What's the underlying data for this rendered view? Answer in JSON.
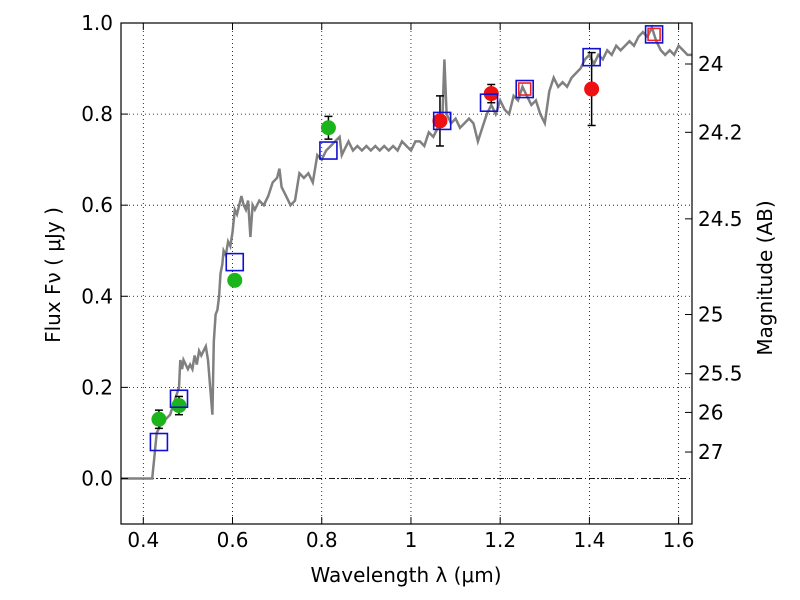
{
  "chart_data": {
    "type": "scatter",
    "xlabel": "Wavelength  λ (μm)",
    "ylabel": "Flux  Fν  ( μJy )",
    "y2label": "Magnitude (AB)",
    "xlim": [
      0.35,
      1.63
    ],
    "ylim": [
      -0.1,
      1.0
    ],
    "grid": true,
    "xticks": [
      0.4,
      0.6,
      0.8,
      1.0,
      1.2,
      1.4,
      1.6
    ],
    "xtick_labels": [
      "0.4",
      "0.6",
      "0.8",
      "1",
      "1.2",
      "1.4",
      "1.6"
    ],
    "yticks": [
      0.0,
      0.2,
      0.4,
      0.6,
      0.8,
      1.0
    ],
    "ytick_labels": [
      "0.0",
      "0.2",
      "0.4",
      "0.6",
      "0.8",
      "1.0"
    ],
    "y2ticks": [
      {
        "label": "24",
        "flux": 0.91
      },
      {
        "label": "24.2",
        "flux": 0.76
      },
      {
        "label": "24.5",
        "flux": 0.57
      },
      {
        "label": "25",
        "flux": 0.36
      },
      {
        "label": "25.5",
        "flux": 0.23
      },
      {
        "label": "26",
        "flux": 0.145
      },
      {
        "label": "27",
        "flux": 0.058
      }
    ],
    "colors": {
      "model": "#808080",
      "green": "#1bb41b",
      "red": "#ee1111",
      "box": "#1010d0",
      "red_box": "#ee2222"
    },
    "series": [
      {
        "style": "model-line",
        "points": [
          [
            0.35,
            0.0
          ],
          [
            0.42,
            0.0
          ],
          [
            0.425,
            0.05
          ],
          [
            0.43,
            0.1
          ],
          [
            0.44,
            0.12
          ],
          [
            0.45,
            0.13
          ],
          [
            0.46,
            0.14
          ],
          [
            0.47,
            0.17
          ],
          [
            0.48,
            0.2
          ],
          [
            0.483,
            0.26
          ],
          [
            0.487,
            0.24
          ],
          [
            0.49,
            0.26
          ],
          [
            0.495,
            0.25
          ],
          [
            0.5,
            0.24
          ],
          [
            0.505,
            0.25
          ],
          [
            0.51,
            0.24
          ],
          [
            0.515,
            0.27
          ],
          [
            0.52,
            0.25
          ],
          [
            0.525,
            0.28
          ],
          [
            0.53,
            0.27
          ],
          [
            0.535,
            0.28
          ],
          [
            0.54,
            0.29
          ],
          [
            0.545,
            0.26
          ],
          [
            0.55,
            0.2
          ],
          [
            0.555,
            0.14
          ],
          [
            0.558,
            0.3
          ],
          [
            0.562,
            0.36
          ],
          [
            0.566,
            0.37
          ],
          [
            0.57,
            0.4
          ],
          [
            0.573,
            0.45
          ],
          [
            0.577,
            0.47
          ],
          [
            0.58,
            0.5
          ],
          [
            0.585,
            0.49
          ],
          [
            0.59,
            0.52
          ],
          [
            0.595,
            0.51
          ],
          [
            0.6,
            0.54
          ],
          [
            0.605,
            0.59
          ],
          [
            0.61,
            0.58
          ],
          [
            0.615,
            0.6
          ],
          [
            0.62,
            0.62
          ],
          [
            0.625,
            0.6
          ],
          [
            0.63,
            0.59
          ],
          [
            0.635,
            0.61
          ],
          [
            0.64,
            0.53
          ],
          [
            0.645,
            0.6
          ],
          [
            0.65,
            0.59
          ],
          [
            0.66,
            0.61
          ],
          [
            0.67,
            0.6
          ],
          [
            0.68,
            0.62
          ],
          [
            0.69,
            0.65
          ],
          [
            0.7,
            0.66
          ],
          [
            0.705,
            0.68
          ],
          [
            0.71,
            0.64
          ],
          [
            0.72,
            0.62
          ],
          [
            0.73,
            0.6
          ],
          [
            0.74,
            0.61
          ],
          [
            0.75,
            0.67
          ],
          [
            0.76,
            0.66
          ],
          [
            0.77,
            0.67
          ],
          [
            0.78,
            0.65
          ],
          [
            0.79,
            0.71
          ],
          [
            0.8,
            0.7
          ],
          [
            0.81,
            0.72
          ],
          [
            0.82,
            0.73
          ],
          [
            0.83,
            0.74
          ],
          [
            0.84,
            0.75
          ],
          [
            0.845,
            0.71
          ],
          [
            0.85,
            0.72
          ],
          [
            0.86,
            0.74
          ],
          [
            0.87,
            0.72
          ],
          [
            0.88,
            0.73
          ],
          [
            0.89,
            0.72
          ],
          [
            0.9,
            0.73
          ],
          [
            0.91,
            0.72
          ],
          [
            0.92,
            0.73
          ],
          [
            0.93,
            0.72
          ],
          [
            0.94,
            0.73
          ],
          [
            0.95,
            0.72
          ],
          [
            0.96,
            0.73
          ],
          [
            0.97,
            0.72
          ],
          [
            0.98,
            0.74
          ],
          [
            0.99,
            0.73
          ],
          [
            1.0,
            0.72
          ],
          [
            1.01,
            0.74
          ],
          [
            1.02,
            0.74
          ],
          [
            1.03,
            0.73
          ],
          [
            1.04,
            0.76
          ],
          [
            1.05,
            0.75
          ],
          [
            1.06,
            0.77
          ],
          [
            1.07,
            0.78
          ],
          [
            1.075,
            0.92
          ],
          [
            1.08,
            0.8
          ],
          [
            1.09,
            0.78
          ],
          [
            1.1,
            0.79
          ],
          [
            1.11,
            0.77
          ],
          [
            1.12,
            0.78
          ],
          [
            1.13,
            0.79
          ],
          [
            1.14,
            0.78
          ],
          [
            1.15,
            0.74
          ],
          [
            1.16,
            0.77
          ],
          [
            1.17,
            0.8
          ],
          [
            1.18,
            0.82
          ],
          [
            1.19,
            0.8
          ],
          [
            1.2,
            0.83
          ],
          [
            1.21,
            0.81
          ],
          [
            1.22,
            0.8
          ],
          [
            1.23,
            0.84
          ],
          [
            1.24,
            0.83
          ],
          [
            1.25,
            0.86
          ],
          [
            1.26,
            0.84
          ],
          [
            1.27,
            0.82
          ],
          [
            1.28,
            0.83
          ],
          [
            1.29,
            0.8
          ],
          [
            1.3,
            0.78
          ],
          [
            1.31,
            0.85
          ],
          [
            1.32,
            0.88
          ],
          [
            1.33,
            0.86
          ],
          [
            1.34,
            0.87
          ],
          [
            1.35,
            0.86
          ],
          [
            1.36,
            0.88
          ],
          [
            1.37,
            0.89
          ],
          [
            1.38,
            0.9
          ],
          [
            1.39,
            0.92
          ],
          [
            1.4,
            0.93
          ],
          [
            1.41,
            0.91
          ],
          [
            1.42,
            0.93
          ],
          [
            1.43,
            0.92
          ],
          [
            1.44,
            0.94
          ],
          [
            1.45,
            0.93
          ],
          [
            1.46,
            0.95
          ],
          [
            1.47,
            0.94
          ],
          [
            1.48,
            0.95
          ],
          [
            1.49,
            0.96
          ],
          [
            1.5,
            0.95
          ],
          [
            1.51,
            0.97
          ],
          [
            1.52,
            0.98
          ],
          [
            1.53,
            0.97
          ],
          [
            1.54,
            0.99
          ],
          [
            1.55,
            0.96
          ],
          [
            1.56,
            0.94
          ],
          [
            1.57,
            0.93
          ],
          [
            1.58,
            0.94
          ],
          [
            1.59,
            0.93
          ],
          [
            1.6,
            0.95
          ],
          [
            1.61,
            0.94
          ],
          [
            1.62,
            0.93
          ],
          [
            1.63,
            0.93
          ]
        ]
      },
      {
        "style": "green-circle",
        "points": [
          {
            "x": 0.435,
            "y": 0.13,
            "err": 0.02
          },
          {
            "x": 0.48,
            "y": 0.16,
            "err": 0.02
          },
          {
            "x": 0.605,
            "y": 0.435
          },
          {
            "x": 0.815,
            "y": 0.77,
            "err": 0.025
          }
        ]
      },
      {
        "style": "red-circle",
        "points": [
          {
            "x": 1.065,
            "y": 0.785,
            "err": 0.055
          },
          {
            "x": 1.18,
            "y": 0.845,
            "err": 0.02
          },
          {
            "x": 1.405,
            "y": 0.855,
            "err": 0.08
          }
        ]
      },
      {
        "style": "blue-square",
        "points": [
          {
            "x": 0.435,
            "y": 0.08
          },
          {
            "x": 0.48,
            "y": 0.175
          },
          {
            "x": 0.605,
            "y": 0.475
          },
          {
            "x": 0.815,
            "y": 0.72
          },
          {
            "x": 1.07,
            "y": 0.785
          },
          {
            "x": 1.175,
            "y": 0.825
          },
          {
            "x": 1.255,
            "y": 0.855
          },
          {
            "x": 1.405,
            "y": 0.925
          },
          {
            "x": 1.545,
            "y": 0.975
          }
        ]
      },
      {
        "style": "red-square",
        "points": [
          {
            "x": 1.255,
            "y": 0.855
          },
          {
            "x": 1.545,
            "y": 0.975
          }
        ]
      }
    ]
  }
}
